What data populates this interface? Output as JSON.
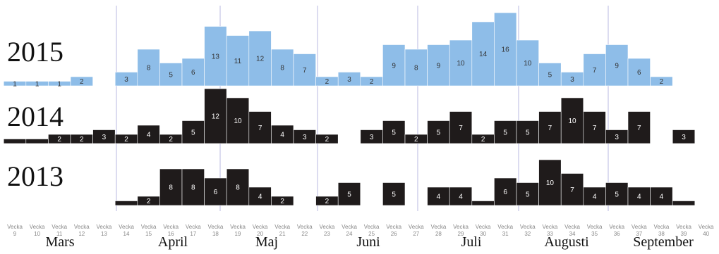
{
  "chart_data": {
    "type": "bar",
    "categories": [
      "Vecka 9",
      "Vecka 10",
      "Vecka 11",
      "Vecka 12",
      "Vecka 13",
      "Vecka 14",
      "Vecka 15",
      "Vecka 16",
      "Vecka 17",
      "Vecka 18",
      "Vecka 19",
      "Vecka 20",
      "Vecka 21",
      "Vecka 22",
      "Vecka 23",
      "Vecka 24",
      "Vecka 25",
      "Vecka 26",
      "Vecka 27",
      "Vecka 28",
      "Vecka 29",
      "Vecka 30",
      "Vecka 31",
      "Vecka 32",
      "Vecka 33",
      "Vecka 34",
      "Vecka 35",
      "Vecka 36",
      "Vecka 37",
      "Vecka 38",
      "Vecka 39",
      "Vecka 40"
    ],
    "months": [
      "Mars",
      "April",
      "Maj",
      "Juni",
      "Juli",
      "Augusti",
      "September"
    ],
    "ylim": [
      0,
      16
    ],
    "series": [
      {
        "name": "2015",
        "color": "#8ebde8",
        "values": [
          1,
          1,
          1,
          2,
          null,
          3,
          8,
          5,
          6,
          13,
          11,
          12,
          8,
          7,
          2,
          3,
          2,
          9,
          8,
          9,
          10,
          14,
          16,
          10,
          5,
          3,
          7,
          9,
          6,
          2,
          null,
          null
        ]
      },
      {
        "name": "2014",
        "color": "#1f1b1b",
        "values": [
          1,
          1,
          2,
          2,
          3,
          2,
          4,
          2,
          5,
          12,
          10,
          7,
          4,
          3,
          2,
          null,
          3,
          5,
          2,
          5,
          7,
          2,
          5,
          5,
          7,
          10,
          7,
          3,
          7,
          null,
          3,
          null
        ],
        "value_labels": [
          null,
          null,
          "2",
          "2",
          "3",
          "2",
          "4",
          "2",
          "5",
          "12",
          "10",
          "7",
          "4",
          "3",
          "2",
          null,
          "3",
          "5",
          "2",
          "5",
          "7",
          "2",
          "5",
          "5",
          "7",
          "10",
          "7",
          "3",
          "7",
          null,
          "3",
          null
        ]
      },
      {
        "name": "2013",
        "color": "#1f1b1b",
        "values": [
          null,
          null,
          null,
          null,
          null,
          1,
          2,
          8,
          8,
          6,
          8,
          4,
          2,
          null,
          2,
          5,
          null,
          5,
          null,
          4,
          4,
          1,
          6,
          5,
          10,
          7,
          4,
          5,
          4,
          4,
          1,
          null
        ],
        "value_labels": [
          null,
          null,
          null,
          null,
          null,
          null,
          "2",
          "8",
          "8",
          "6",
          "8",
          "4",
          "2",
          null,
          "2",
          "5",
          null,
          "5",
          null,
          "4",
          "4",
          null,
          "6",
          "5",
          "10",
          "7",
          "4",
          "5",
          "4",
          "4",
          null,
          null
        ]
      }
    ]
  }
}
